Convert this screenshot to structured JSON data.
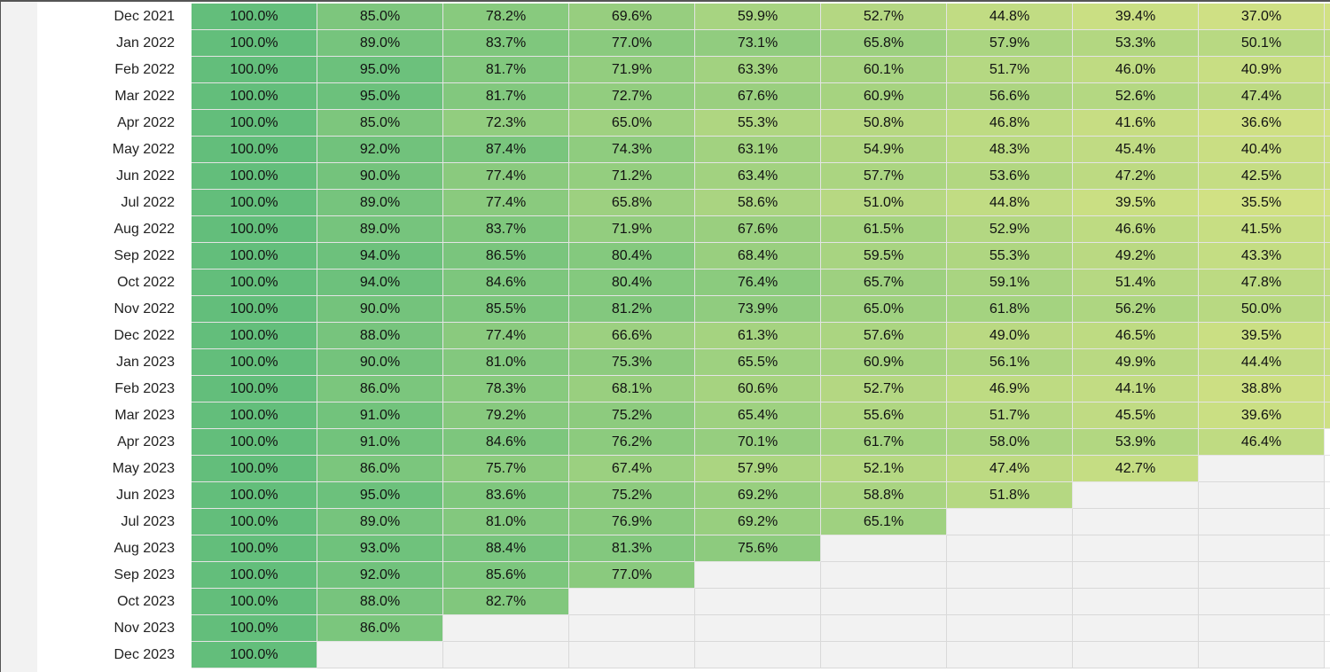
{
  "color_scale": {
    "high": "#63be7b",
    "low": "#d2e184",
    "empty": "#f2f2f2",
    "min_value": 35,
    "max_value": 100
  },
  "cohort_table": {
    "rows": [
      {
        "label": "Dec 2021",
        "values": [
          "100.0%",
          "85.0%",
          "78.2%",
          "69.6%",
          "59.9%",
          "52.7%",
          "44.8%",
          "39.4%",
          "37.0%"
        ],
        "more": true
      },
      {
        "label": "Jan 2022",
        "values": [
          "100.0%",
          "89.0%",
          "83.7%",
          "77.0%",
          "73.1%",
          "65.8%",
          "57.9%",
          "53.3%",
          "50.1%"
        ],
        "more": true
      },
      {
        "label": "Feb 2022",
        "values": [
          "100.0%",
          "95.0%",
          "81.7%",
          "71.9%",
          "63.3%",
          "60.1%",
          "51.7%",
          "46.0%",
          "40.9%"
        ],
        "more": true
      },
      {
        "label": "Mar 2022",
        "values": [
          "100.0%",
          "95.0%",
          "81.7%",
          "72.7%",
          "67.6%",
          "60.9%",
          "56.6%",
          "52.6%",
          "47.4%"
        ],
        "more": true
      },
      {
        "label": "Apr 2022",
        "values": [
          "100.0%",
          "85.0%",
          "72.3%",
          "65.0%",
          "55.3%",
          "50.8%",
          "46.8%",
          "41.6%",
          "36.6%"
        ],
        "more": true
      },
      {
        "label": "May 2022",
        "values": [
          "100.0%",
          "92.0%",
          "87.4%",
          "74.3%",
          "63.1%",
          "54.9%",
          "48.3%",
          "45.4%",
          "40.4%"
        ],
        "more": true
      },
      {
        "label": "Jun 2022",
        "values": [
          "100.0%",
          "90.0%",
          "77.4%",
          "71.2%",
          "63.4%",
          "57.7%",
          "53.6%",
          "47.2%",
          "42.5%"
        ],
        "more": true
      },
      {
        "label": "Jul 2022",
        "values": [
          "100.0%",
          "89.0%",
          "77.4%",
          "65.8%",
          "58.6%",
          "51.0%",
          "44.8%",
          "39.5%",
          "35.5%"
        ],
        "more": true
      },
      {
        "label": "Aug 2022",
        "values": [
          "100.0%",
          "89.0%",
          "83.7%",
          "71.9%",
          "67.6%",
          "61.5%",
          "52.9%",
          "46.6%",
          "41.5%"
        ],
        "more": true
      },
      {
        "label": "Sep 2022",
        "values": [
          "100.0%",
          "94.0%",
          "86.5%",
          "80.4%",
          "68.4%",
          "59.5%",
          "55.3%",
          "49.2%",
          "43.3%"
        ],
        "more": true
      },
      {
        "label": "Oct 2022",
        "values": [
          "100.0%",
          "94.0%",
          "84.6%",
          "80.4%",
          "76.4%",
          "65.7%",
          "59.1%",
          "51.4%",
          "47.8%"
        ],
        "more": true
      },
      {
        "label": "Nov 2022",
        "values": [
          "100.0%",
          "90.0%",
          "85.5%",
          "81.2%",
          "73.9%",
          "65.0%",
          "61.8%",
          "56.2%",
          "50.0%"
        ],
        "more": true
      },
      {
        "label": "Dec 2022",
        "values": [
          "100.0%",
          "88.0%",
          "77.4%",
          "66.6%",
          "61.3%",
          "57.6%",
          "49.0%",
          "46.5%",
          "39.5%"
        ],
        "more": true
      },
      {
        "label": "Jan 2023",
        "values": [
          "100.0%",
          "90.0%",
          "81.0%",
          "75.3%",
          "65.5%",
          "60.9%",
          "56.1%",
          "49.9%",
          "44.4%"
        ],
        "more": true
      },
      {
        "label": "Feb 2023",
        "values": [
          "100.0%",
          "86.0%",
          "78.3%",
          "68.1%",
          "60.6%",
          "52.7%",
          "46.9%",
          "44.1%",
          "38.8%"
        ],
        "more": true
      },
      {
        "label": "Mar 2023",
        "values": [
          "100.0%",
          "91.0%",
          "79.2%",
          "75.2%",
          "65.4%",
          "55.6%",
          "51.7%",
          "45.5%",
          "39.6%"
        ],
        "more": true
      },
      {
        "label": "Apr 2023",
        "values": [
          "100.0%",
          "91.0%",
          "84.6%",
          "76.2%",
          "70.1%",
          "61.7%",
          "58.0%",
          "53.9%",
          "46.4%"
        ],
        "more": false
      },
      {
        "label": "May 2023",
        "values": [
          "100.0%",
          "86.0%",
          "75.7%",
          "67.4%",
          "57.9%",
          "52.1%",
          "47.4%",
          "42.7%"
        ],
        "more": false
      },
      {
        "label": "Jun 2023",
        "values": [
          "100.0%",
          "95.0%",
          "83.6%",
          "75.2%",
          "69.2%",
          "58.8%",
          "51.8%"
        ],
        "more": false
      },
      {
        "label": "Jul 2023",
        "values": [
          "100.0%",
          "89.0%",
          "81.0%",
          "76.9%",
          "69.2%",
          "65.1%"
        ],
        "more": false
      },
      {
        "label": "Aug 2023",
        "values": [
          "100.0%",
          "93.0%",
          "88.4%",
          "81.3%",
          "75.6%"
        ],
        "more": false
      },
      {
        "label": "Sep 2023",
        "values": [
          "100.0%",
          "92.0%",
          "85.6%",
          "77.0%"
        ],
        "more": false
      },
      {
        "label": "Oct 2023",
        "values": [
          "100.0%",
          "88.0%",
          "82.7%"
        ],
        "more": false
      },
      {
        "label": "Nov 2023",
        "values": [
          "100.0%",
          "86.0%"
        ],
        "more": false
      },
      {
        "label": "Dec 2023",
        "values": [
          "100.0%"
        ],
        "more": false
      }
    ]
  }
}
